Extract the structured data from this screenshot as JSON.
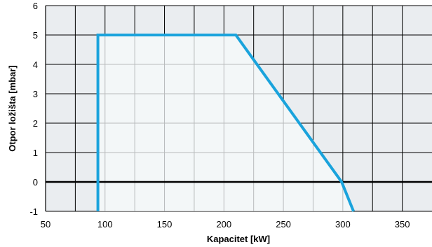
{
  "chart_data": {
    "type": "area",
    "title": "",
    "xlabel": "Kapacitet [kW]",
    "ylabel": "Otpor ložišta  [mbar]",
    "xlim": [
      50,
      375
    ],
    "ylim": [
      -1,
      6
    ],
    "x_ticks": [
      50,
      100,
      150,
      200,
      250,
      300,
      350
    ],
    "x_tick_labels": [
      "50",
      "100",
      "150",
      "200",
      "250",
      "300",
      "350"
    ],
    "y_ticks": [
      -1,
      0,
      1,
      2,
      3,
      4,
      5,
      6
    ],
    "y_tick_labels": [
      "-1",
      "0",
      "1",
      "2",
      "3",
      "4",
      "5",
      "6"
    ],
    "x_grid_step": 25,
    "grid": true,
    "series": [
      {
        "x": [
          94,
          94,
          210,
          299,
          309
        ],
        "y": [
          -1,
          5,
          5,
          0,
          -1
        ]
      }
    ],
    "colors": {
      "plot_background": "#eaedf0",
      "grid": "#000000",
      "zero_line": "#000000",
      "region_fill": "#f5fafb",
      "region_outline": "#1aa3dc"
    }
  }
}
